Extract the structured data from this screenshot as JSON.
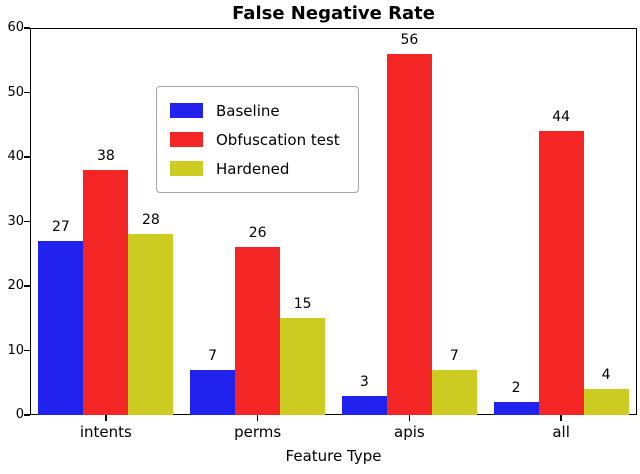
{
  "chart_data": {
    "type": "bar",
    "title": "False Negative Rate",
    "xlabel": "Feature Type",
    "ylabel": "",
    "categories": [
      "intents",
      "perms",
      "apis",
      "all"
    ],
    "series": [
      {
        "name": "Baseline",
        "color": "#2222ee",
        "values": [
          27,
          7,
          3,
          2
        ]
      },
      {
        "name": "Obfuscation test",
        "color": "#f42525",
        "values": [
          38,
          26,
          56,
          44
        ]
      },
      {
        "name": "Hardened",
        "color": "#cccc22",
        "values": [
          28,
          15,
          7,
          4
        ]
      }
    ],
    "ylim": [
      0,
      60
    ],
    "ytick_step": 10,
    "bar_labels": true,
    "grid": false,
    "legend_position": "upper-left-inset"
  }
}
